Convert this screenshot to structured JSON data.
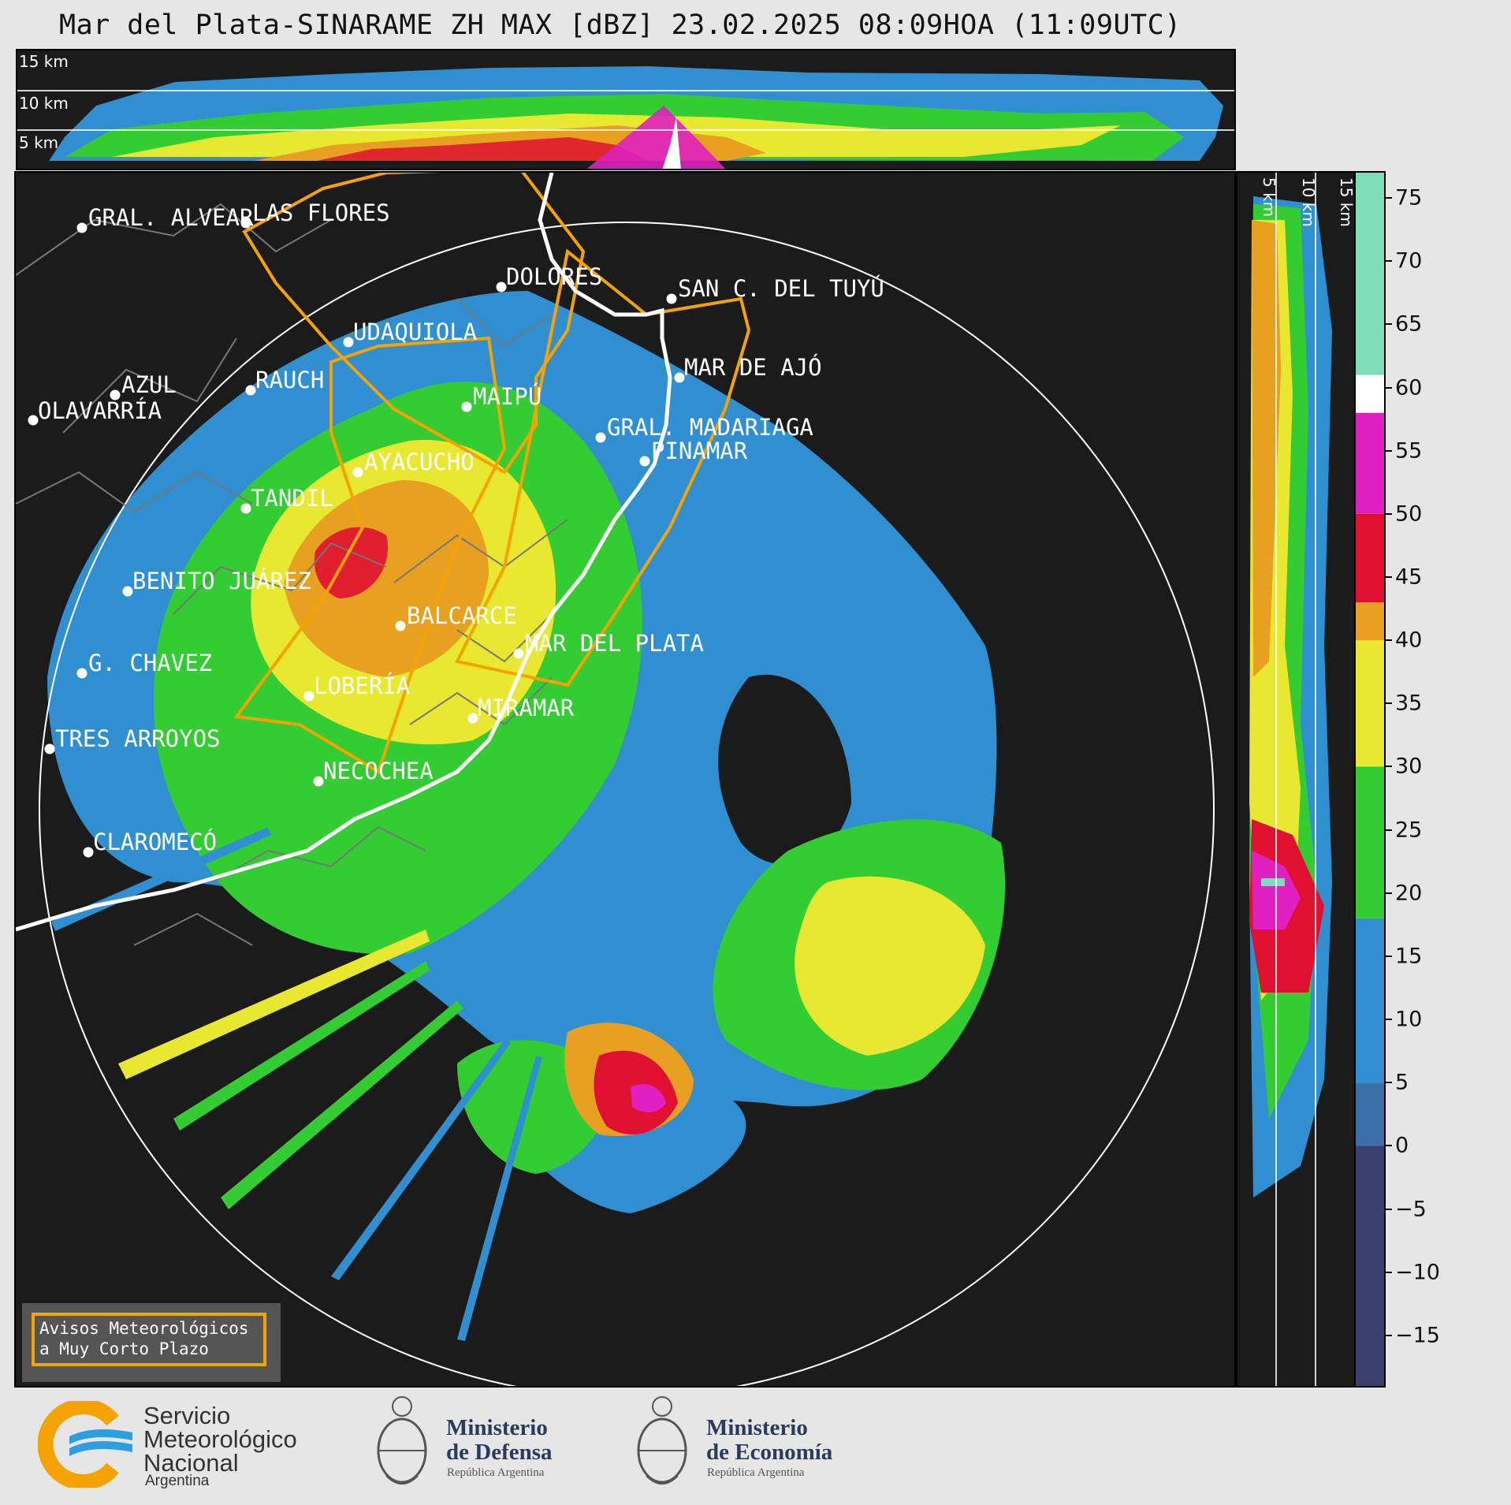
{
  "title": "Mar del Plata-SINARAME ZH MAX [dBZ] 23.02.2025 08:09HOA (11:09UTC)",
  "xsec_top": {
    "height_labels": [
      "15 km",
      "10 km",
      "5 km"
    ]
  },
  "xsec_right": {
    "height_labels": [
      "5 km",
      "10 km",
      "15 km"
    ]
  },
  "colorbar": {
    "unit": "dBZ",
    "ticks": [
      "75",
      "70",
      "65",
      "60",
      "55",
      "50",
      "45",
      "40",
      "35",
      "30",
      "25",
      "20",
      "15",
      "10",
      "5",
      "0",
      "−5",
      "−10",
      "−15"
    ],
    "tick_values": [
      75,
      70,
      65,
      60,
      55,
      50,
      45,
      40,
      35,
      30,
      25,
      20,
      15,
      10,
      5,
      0,
      -5,
      -10,
      -15
    ],
    "range": [
      -19,
      77
    ],
    "bands": [
      {
        "from": -19,
        "to": 0,
        "color": "#3a3f6e"
      },
      {
        "from": 0,
        "to": 5,
        "color": "#3a6fa8"
      },
      {
        "from": 5,
        "to": 18,
        "color": "#2f8fd0"
      },
      {
        "from": 18,
        "to": 30,
        "color": "#33cc33"
      },
      {
        "from": 30,
        "to": 40,
        "color": "#e8e830"
      },
      {
        "from": 40,
        "to": 43,
        "color": "#e8a020"
      },
      {
        "from": 43,
        "to": 50,
        "color": "#e01030"
      },
      {
        "from": 50,
        "to": 58,
        "color": "#e020c0"
      },
      {
        "from": 58,
        "to": 61,
        "color": "#ffffff"
      },
      {
        "from": 61,
        "to": 77,
        "color": "#7fdcb8"
      }
    ]
  },
  "cities": [
    {
      "name": "GRAL. ALVEAR"
    },
    {
      "name": "LAS FLORES"
    },
    {
      "name": "DOLORES"
    },
    {
      "name": "SAN C. DEL TUYÚ"
    },
    {
      "name": "UDAQUIOLA"
    },
    {
      "name": "MAR DE AJÓ"
    },
    {
      "name": "AZUL"
    },
    {
      "name": "RAUCH"
    },
    {
      "name": "MAIPÚ"
    },
    {
      "name": "OLAVARRÍA"
    },
    {
      "name": "GRAL. MADARIAGA"
    },
    {
      "name": "PINAMAR"
    },
    {
      "name": "AYACUCHO"
    },
    {
      "name": "TANDIL"
    },
    {
      "name": "BENITO JUÁREZ"
    },
    {
      "name": "BALCARCE"
    },
    {
      "name": "MAR DEL PLATA"
    },
    {
      "name": "G. CHAVEZ"
    },
    {
      "name": "LOBERÍA"
    },
    {
      "name": "MIRAMAR"
    },
    {
      "name": "TRES ARROYOS"
    },
    {
      "name": "NECOCHEA"
    },
    {
      "name": "CLAROMECÓ"
    }
  ],
  "warning_box": {
    "line1": "Avisos Meteorológicos",
    "line2": "a Muy Corto Plazo",
    "border_color": "#f5a300"
  },
  "logos": {
    "smn": {
      "line1": "Servicio",
      "line2": "Meteorológico",
      "line3": "Nacional",
      "line4": "Argentina"
    },
    "defensa": {
      "line1": "Ministerio",
      "line2": "de Defensa",
      "line3": "República Argentina"
    },
    "economia": {
      "line1": "Ministerio",
      "line2": "de Economía",
      "line3": "República Argentina"
    }
  }
}
